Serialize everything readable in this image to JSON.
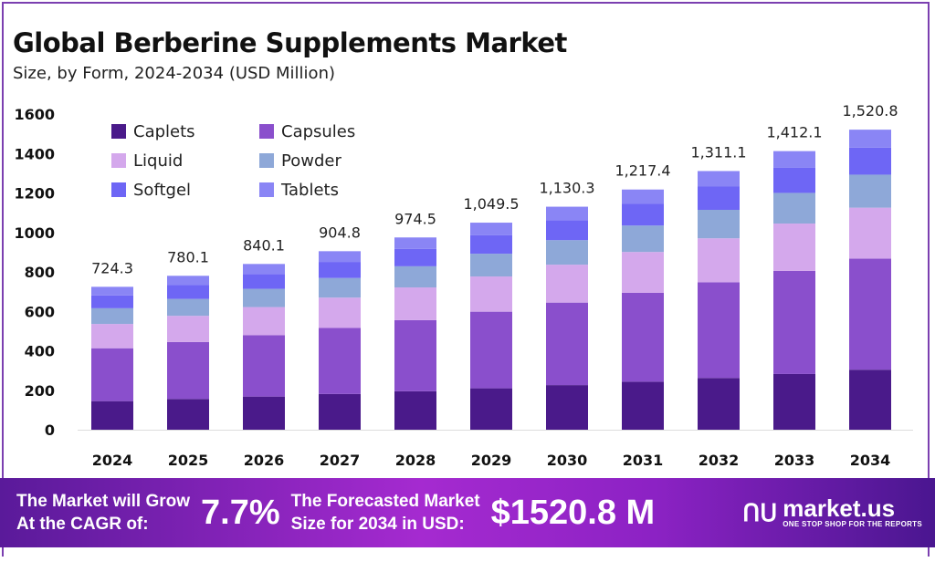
{
  "chart_data": {
    "type": "bar",
    "stacked": true,
    "title": "Global Berberine Supplements Market",
    "subtitle": "Size, by Form, 2024-2034 (USD Million)",
    "xlabel": "",
    "ylabel": "",
    "ylim": [
      0,
      1600
    ],
    "yticks": [
      "0",
      "200",
      "400",
      "600",
      "800",
      "1000",
      "1200",
      "1400",
      "1600"
    ],
    "legend_position": "top-left",
    "categories": [
      "2024",
      "2025",
      "2026",
      "2027",
      "2028",
      "2029",
      "2030",
      "2031",
      "2032",
      "2033",
      "2034"
    ],
    "totals": [
      "724.3",
      "780.1",
      "840.1",
      "904.8",
      "974.5",
      "1,049.5",
      "1,130.3",
      "1,217.4",
      "1,311.1",
      "1,412.1",
      "1,520.8"
    ],
    "total_values": [
      724.3,
      780.1,
      840.1,
      904.8,
      974.5,
      1049.5,
      1130.3,
      1217.4,
      1311.1,
      1412.1,
      1520.8
    ],
    "series": [
      {
        "name": "Caplets",
        "color": "#4a1a8a",
        "values": [
          144.9,
          156.0,
          168.0,
          181.0,
          194.9,
          209.9,
          226.1,
          243.5,
          262.2,
          282.4,
          304.2
        ]
      },
      {
        "name": "Capsules",
        "color": "#8a4fcc",
        "values": [
          268.0,
          288.6,
          310.8,
          334.8,
          360.6,
          388.3,
          418.2,
          450.4,
          485.1,
          522.5,
          562.7
        ]
      },
      {
        "name": "Liquid",
        "color": "#d4a8ec",
        "values": [
          123.1,
          132.6,
          142.8,
          153.8,
          165.7,
          178.4,
          192.2,
          207.0,
          222.9,
          240.1,
          258.5
        ]
      },
      {
        "name": "Powder",
        "color": "#8ea8d8",
        "values": [
          79.7,
          85.8,
          92.4,
          99.5,
          107.2,
          115.4,
          124.3,
          133.9,
          144.2,
          155.3,
          167.3
        ]
      },
      {
        "name": "Softgel",
        "color": "#6e66f5",
        "values": [
          65.2,
          70.2,
          75.6,
          81.4,
          87.7,
          94.5,
          101.7,
          109.6,
          118.0,
          127.1,
          136.9
        ]
      },
      {
        "name": "Tablets",
        "color": "#8a85f5",
        "values": [
          43.4,
          46.9,
          50.5,
          54.3,
          58.4,
          63.0,
          67.8,
          73.0,
          78.7,
          84.7,
          91.2
        ]
      }
    ]
  },
  "footer": {
    "cagr_label_1": "The Market will Grow",
    "cagr_label_2": "At the CAGR of:",
    "cagr_value": "7.7%",
    "forecast_label_1": "The Forecasted Market",
    "forecast_label_2": "Size for 2034 in USD:",
    "forecast_value": "$1520.8 M",
    "brand": "market.us",
    "brand_tagline": "ONE STOP SHOP FOR THE REPORTS"
  }
}
